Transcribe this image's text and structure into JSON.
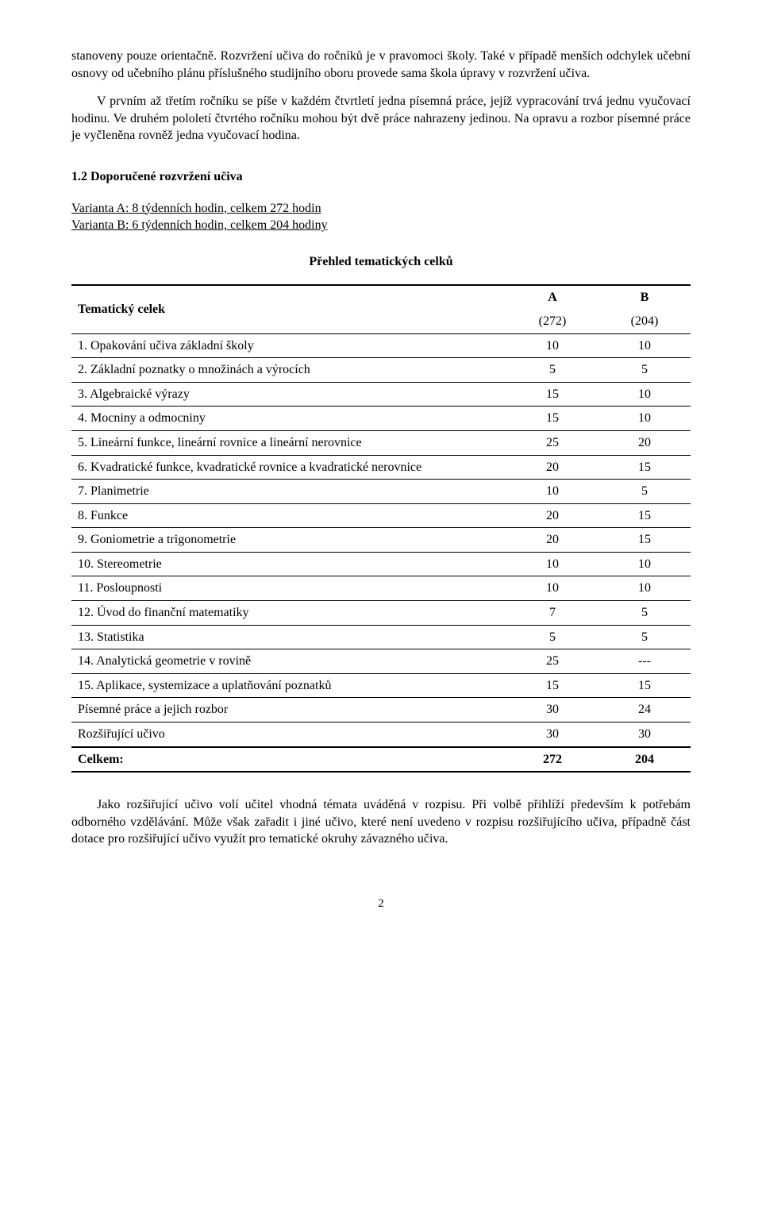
{
  "para1": "stanoveny pouze orientačně. Rozvržení učiva do ročníků je v pravomoci školy. Také v případě menších odchylek učební osnovy od učebního plánu příslušného studijního oboru provede sama škola úpravy v rozvržení učiva.",
  "para2": "V prvním až třetím ročníku se píše v každém čtvrtletí jedna písemná práce, jejíž vypracování trvá jednu vyučovací hodinu. Ve druhém pololetí čtvrtého ročníku mohou být dvě práce nahrazeny jedinou. Na opravu a rozbor písemné práce je vyčleněna rovněž jedna vyučovací hodina.",
  "section_heading": "1.2 Doporučené rozvržení učiva",
  "variant_a": "Varianta A: 8 týdenních hodin, celkem 272 hodin",
  "variant_b": "Varianta B: 6 týdenních hodin, celkem 204 hodiny",
  "table_title": "Přehled tematických celků",
  "header": {
    "left": "Tematický celek",
    "col_a": "A",
    "col_b": "B",
    "sub_a": "(272)",
    "sub_b": "(204)"
  },
  "rows": [
    {
      "name": "1. Opakování učiva základní školy",
      "a": "10",
      "b": "10"
    },
    {
      "name": "2. Základní poznatky o množinách a výrocích",
      "a": "5",
      "b": "5"
    },
    {
      "name": "3. Algebraické výrazy",
      "a": "15",
      "b": "10"
    },
    {
      "name": "4. Mocniny a odmocniny",
      "a": "15",
      "b": "10"
    },
    {
      "name": "5. Lineární funkce, lineární rovnice a lineární nerovnice",
      "a": "25",
      "b": "20"
    },
    {
      "name": "6. Kvadratické funkce, kvadratické rovnice a kvadratické nerovnice",
      "a": "20",
      "b": "15"
    },
    {
      "name": "7. Planimetrie",
      "a": "10",
      "b": "5"
    },
    {
      "name": "8. Funkce",
      "a": "20",
      "b": "15"
    },
    {
      "name": "9. Goniometrie a trigonometrie",
      "a": "20",
      "b": "15"
    },
    {
      "name": "10. Stereometrie",
      "a": "10",
      "b": "10"
    },
    {
      "name": "11. Posloupnosti",
      "a": "10",
      "b": "10"
    },
    {
      "name": "12. Úvod do finanční matematiky",
      "a": "7",
      "b": "5"
    },
    {
      "name": "13. Statistika",
      "a": "5",
      "b": "5"
    },
    {
      "name": "14. Analytická geometrie v rovině",
      "a": "25",
      "b": "---"
    },
    {
      "name": "15. Aplikace, systemizace a uplatňování poznatků",
      "a": "15",
      "b": "15"
    },
    {
      "name": "Písemné práce a jejich rozbor",
      "a": "30",
      "b": "24"
    },
    {
      "name": "Rozšiřující učivo",
      "a": "30",
      "b": "30"
    }
  ],
  "total": {
    "name": "Celkem:",
    "a": "272",
    "b": "204"
  },
  "para3": "Jako rozšiřující učivo volí učitel vhodná témata uváděná v rozpisu. Při volbě přihlíží především k potřebám odborného vzdělávání. Může však zařadit i jiné učivo, které není uvedeno v rozpisu rozšiřujícího učiva, případně část dotace pro rozšiřující učivo využít pro tematické okruhy závazného učiva.",
  "page_number": "2"
}
